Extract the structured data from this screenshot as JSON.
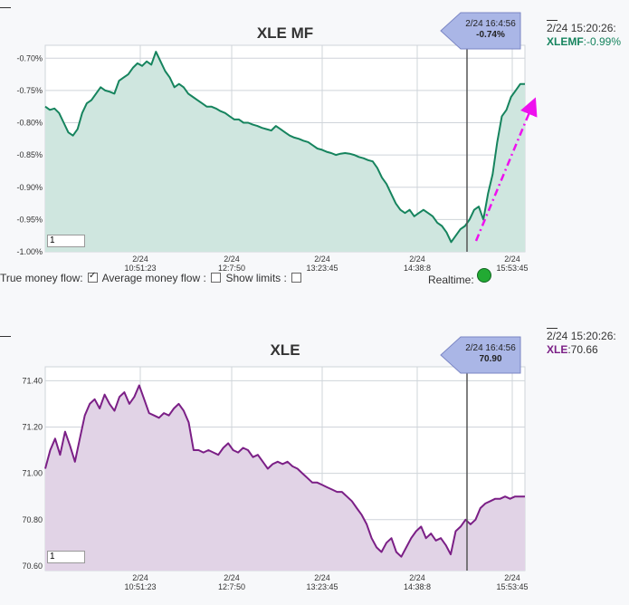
{
  "chart_data": [
    {
      "type": "area",
      "title": "XLE MF",
      "ylim": [
        -1.0,
        -0.68
      ],
      "y_ticks": [
        "-0.70%",
        "-0.75%",
        "-0.80%",
        "-0.85%",
        "-0.90%",
        "-0.95%",
        "-1.00%"
      ],
      "y_tick_values": [
        -0.7,
        -0.75,
        -0.8,
        -0.85,
        -0.9,
        -0.95,
        -1.0
      ],
      "x_ticks": [
        {
          "date": "2/24",
          "time": "10:51:23"
        },
        {
          "date": "2/24",
          "time": "12:7:50"
        },
        {
          "date": "2/24",
          "time": "13:23:45"
        },
        {
          "date": "2/24",
          "time": "14:38:8"
        },
        {
          "date": "2/24",
          "time": "15:53:45"
        }
      ],
      "series": [
        {
          "values": [
            -0.775,
            -0.78,
            -0.778,
            -0.785,
            -0.8,
            -0.815,
            -0.82,
            -0.81,
            -0.785,
            -0.77,
            -0.765,
            -0.755,
            -0.745,
            -0.75,
            -0.752,
            -0.755,
            -0.735,
            -0.73,
            -0.725,
            -0.715,
            -0.708,
            -0.712,
            -0.705,
            -0.71,
            -0.69,
            -0.705,
            -0.72,
            -0.73,
            -0.745,
            -0.74,
            -0.745,
            -0.755,
            -0.76,
            -0.765,
            -0.77,
            -0.775,
            -0.775,
            -0.778,
            -0.782,
            -0.785,
            -0.79,
            -0.795,
            -0.795,
            -0.8,
            -0.8,
            -0.803,
            -0.805,
            -0.808,
            -0.81,
            -0.812,
            -0.805,
            -0.81,
            -0.815,
            -0.82,
            -0.823,
            -0.825,
            -0.828,
            -0.83,
            -0.835,
            -0.84,
            -0.842,
            -0.845,
            -0.847,
            -0.85,
            -0.848,
            -0.847,
            -0.848,
            -0.85,
            -0.853,
            -0.855,
            -0.858,
            -0.86,
            -0.87,
            -0.885,
            -0.895,
            -0.91,
            -0.925,
            -0.935,
            -0.94,
            -0.935,
            -0.945,
            -0.94,
            -0.935,
            -0.94,
            -0.945,
            -0.955,
            -0.96,
            -0.97,
            -0.985,
            -0.975,
            -0.965,
            -0.96,
            -0.95,
            -0.935,
            -0.93,
            -0.95,
            -0.91,
            -0.88,
            -0.83,
            -0.79,
            -0.78,
            -0.76,
            -0.75,
            -0.74,
            -0.74
          ],
          "color": "#16845e",
          "fill": "#cfe6df"
        }
      ],
      "flag": {
        "time": "2/24 16:4:56",
        "value": "-0.74%"
      },
      "readout": {
        "time": "2/24 15:20:26:",
        "symbol": "XLEMF",
        "value": ":-0.99%"
      },
      "annotation": {
        "type": "dash-dot arrow",
        "color": "#ee11ee"
      }
    },
    {
      "type": "area",
      "title": "XLE",
      "ylim": [
        70.58,
        71.46
      ],
      "y_ticks": [
        "71.40",
        "71.20",
        "71.00",
        "70.80",
        "70.60"
      ],
      "y_tick_values": [
        71.4,
        71.2,
        71.0,
        70.8,
        70.6
      ],
      "x_ticks": [
        {
          "date": "2/24",
          "time": "10:51:23"
        },
        {
          "date": "2/24",
          "time": "12:7:50"
        },
        {
          "date": "2/24",
          "time": "13:23:45"
        },
        {
          "date": "2/24",
          "time": "14:38:8"
        },
        {
          "date": "2/24",
          "time": "15:53:45"
        }
      ],
      "series": [
        {
          "values": [
            71.02,
            71.1,
            71.15,
            71.08,
            71.18,
            71.12,
            71.05,
            71.15,
            71.25,
            71.3,
            71.32,
            71.28,
            71.34,
            71.3,
            71.27,
            71.33,
            71.35,
            71.3,
            71.33,
            71.38,
            71.32,
            71.26,
            71.25,
            71.24,
            71.26,
            71.25,
            71.28,
            71.3,
            71.27,
            71.22,
            71.1,
            71.1,
            71.09,
            71.1,
            71.09,
            71.08,
            71.11,
            71.13,
            71.1,
            71.09,
            71.11,
            71.1,
            71.07,
            71.08,
            71.05,
            71.02,
            71.04,
            71.05,
            71.04,
            71.05,
            71.03,
            71.02,
            71.0,
            70.98,
            70.96,
            70.96,
            70.95,
            70.94,
            70.93,
            70.92,
            70.92,
            70.9,
            70.88,
            70.85,
            70.82,
            70.78,
            70.72,
            70.68,
            70.66,
            70.7,
            70.72,
            70.66,
            70.64,
            70.68,
            70.72,
            70.75,
            70.77,
            70.72,
            70.74,
            70.71,
            70.72,
            70.69,
            70.65,
            70.75,
            70.77,
            70.8,
            70.78,
            70.8,
            70.85,
            70.87,
            70.88,
            70.89,
            70.89,
            70.9,
            70.89,
            70.9,
            70.9,
            70.9
          ],
          "color": "#7b1f86",
          "fill": "#e1d3e6"
        }
      ],
      "flag": {
        "time": "2/24 16:4:56",
        "value": "70.90"
      },
      "readout": {
        "time": "2/24 15:20:26:",
        "symbol": "XLE",
        "value": ":70.66"
      }
    }
  ],
  "zoom_value": "1",
  "controls": {
    "true_money_flow": "True money flow:",
    "average_money_flow": "Average money flow :",
    "show_limits": "Show limits :",
    "realtime": "Realtime:"
  }
}
